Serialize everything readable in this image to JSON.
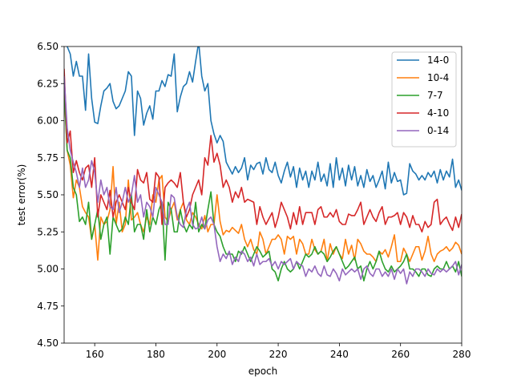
{
  "chart_data": {
    "type": "line",
    "title": "",
    "xlabel": "epoch",
    "ylabel": "test error(%)",
    "xlim": [
      150,
      280
    ],
    "ylim": [
      4.5,
      6.5
    ],
    "xticks": [
      160,
      180,
      200,
      220,
      240,
      260,
      280
    ],
    "yticks": [
      4.5,
      4.75,
      5.0,
      5.25,
      5.5,
      5.75,
      6.0,
      6.25,
      6.5
    ],
    "ytick_labels": [
      "4.50",
      "4.75",
      "5.00",
      "5.25",
      "5.50",
      "5.75",
      "6.00",
      "6.25",
      "6.50"
    ],
    "grid": false,
    "legend_position": "top-right",
    "x_start": 150,
    "x_step": 1,
    "series": [
      {
        "name": "14-0",
        "color": "#1f77b4",
        "values": [
          6.55,
          6.5,
          6.45,
          6.3,
          6.4,
          6.3,
          6.3,
          6.07,
          6.45,
          6.15,
          5.99,
          5.98,
          6.1,
          6.2,
          6.22,
          6.25,
          6.13,
          6.08,
          6.1,
          6.15,
          6.2,
          6.33,
          6.3,
          5.9,
          6.2,
          6.15,
          5.97,
          6.05,
          6.1,
          6.01,
          6.2,
          6.2,
          6.27,
          6.23,
          6.31,
          6.3,
          6.45,
          6.06,
          6.16,
          6.23,
          6.25,
          6.33,
          6.26,
          6.4,
          6.53,
          6.3,
          6.2,
          6.25,
          6.0,
          5.91,
          5.85,
          5.9,
          5.86,
          5.72,
          5.68,
          5.64,
          5.69,
          5.65,
          5.68,
          5.75,
          5.6,
          5.7,
          5.67,
          5.71,
          5.72,
          5.64,
          5.75,
          5.67,
          5.65,
          5.72,
          5.63,
          5.58,
          5.66,
          5.72,
          5.62,
          5.69,
          5.55,
          5.68,
          5.6,
          5.66,
          5.55,
          5.66,
          5.6,
          5.72,
          5.59,
          5.64,
          5.56,
          5.71,
          5.55,
          5.75,
          5.6,
          5.68,
          5.56,
          5.7,
          5.6,
          5.69,
          5.56,
          5.63,
          5.55,
          5.67,
          5.59,
          5.63,
          5.55,
          5.6,
          5.66,
          5.54,
          5.72,
          5.58,
          5.65,
          5.59,
          5.6,
          5.5,
          5.51,
          5.71,
          5.66,
          5.64,
          5.6,
          5.63,
          5.6,
          5.65,
          5.62,
          5.66,
          5.58,
          5.67,
          5.6,
          5.66,
          5.62,
          5.74,
          5.55,
          5.6,
          5.53
        ]
      },
      {
        "name": "10-4",
        "color": "#ff7f0e",
        "values": [
          6.2,
          5.8,
          5.7,
          5.48,
          5.6,
          5.55,
          5.42,
          5.38,
          5.35,
          5.2,
          5.3,
          5.06,
          5.35,
          5.3,
          5.32,
          5.4,
          5.69,
          5.3,
          5.45,
          5.25,
          5.3,
          5.6,
          5.33,
          5.35,
          5.38,
          5.3,
          5.25,
          5.35,
          5.3,
          5.5,
          5.45,
          5.6,
          5.63,
          5.35,
          5.32,
          5.4,
          5.45,
          5.33,
          5.4,
          5.45,
          5.33,
          5.3,
          5.38,
          5.35,
          5.3,
          5.27,
          5.36,
          5.25,
          5.3,
          5.3,
          5.5,
          5.32,
          5.23,
          5.26,
          5.25,
          5.28,
          5.26,
          5.24,
          5.3,
          5.2,
          5.15,
          5.2,
          5.13,
          5.1,
          5.25,
          5.2,
          5.1,
          5.15,
          5.2,
          5.2,
          5.23,
          5.2,
          5.1,
          5.22,
          5.2,
          5.22,
          5.1,
          5.2,
          5.17,
          5.1,
          5.1,
          5.2,
          5.13,
          5.1,
          5.12,
          5.2,
          5.05,
          5.17,
          5.1,
          5.15,
          5.1,
          5.07,
          5.2,
          5.1,
          5.16,
          5.06,
          5.2,
          5.17,
          5.12,
          5.1,
          5.1,
          5.08,
          5.05,
          5.12,
          5.1,
          5.13,
          5.08,
          5.15,
          5.23,
          5.05,
          5.05,
          5.14,
          5.1,
          5.05,
          5.1,
          5.15,
          5.15,
          5.06,
          5.12,
          5.22,
          5.1,
          5.05,
          5.1,
          5.12,
          5.13,
          5.15,
          5.12,
          5.14,
          5.18,
          5.16,
          5.1
        ]
      },
      {
        "name": "7-7",
        "color": "#2ca02c",
        "values": [
          6.2,
          5.8,
          5.75,
          5.55,
          5.5,
          5.32,
          5.35,
          5.3,
          5.45,
          5.2,
          5.3,
          5.4,
          5.2,
          5.3,
          5.35,
          5.1,
          5.35,
          5.3,
          5.25,
          5.27,
          5.35,
          5.3,
          5.5,
          5.25,
          5.3,
          5.3,
          5.2,
          5.4,
          5.25,
          5.35,
          5.3,
          5.4,
          5.45,
          5.06,
          5.45,
          5.4,
          5.25,
          5.25,
          5.4,
          5.3,
          5.25,
          5.3,
          5.27,
          5.45,
          5.25,
          5.3,
          5.27,
          5.4,
          5.52,
          5.3,
          5.25,
          5.22,
          5.15,
          5.1,
          5.1,
          5.1,
          5.05,
          5.12,
          5.1,
          5.15,
          5.1,
          5.05,
          5.1,
          5.15,
          5.12,
          5.08,
          5.1,
          5.12,
          5.0,
          4.98,
          4.92,
          5.0,
          5.05,
          5.0,
          4.98,
          5.0,
          5.05,
          5.0,
          5.05,
          5.1,
          5.08,
          5.1,
          5.15,
          5.1,
          5.12,
          5.1,
          5.05,
          5.08,
          5.12,
          5.15,
          5.1,
          5.05,
          5.0,
          5.02,
          5.05,
          5.08,
          5.0,
          5.02,
          4.92,
          5.0,
          5.05,
          5.0,
          5.05,
          5.12,
          5.05,
          5.0,
          4.98,
          5.02,
          4.98,
          5.0,
          5.02,
          5.05,
          5.1,
          5.0,
          5.0,
          4.98,
          4.95,
          5.0,
          5.0,
          4.96,
          4.95,
          5.0,
          5.02,
          5.0,
          5.0,
          5.05,
          5.0,
          5.02,
          4.98,
          5.05,
          4.95
        ]
      },
      {
        "name": "4-10",
        "color": "#d62728",
        "values": [
          6.35,
          5.85,
          5.93,
          5.65,
          5.73,
          5.65,
          5.6,
          5.68,
          5.7,
          5.55,
          5.75,
          5.35,
          5.5,
          5.45,
          5.4,
          5.53,
          5.35,
          5.45,
          5.5,
          5.45,
          5.4,
          5.55,
          5.45,
          5.4,
          5.67,
          5.6,
          5.58,
          5.65,
          5.47,
          5.45,
          5.65,
          5.62,
          5.3,
          5.55,
          5.58,
          5.6,
          5.58,
          5.55,
          5.65,
          5.45,
          5.35,
          5.4,
          5.5,
          5.55,
          5.6,
          5.5,
          5.75,
          5.7,
          5.9,
          5.72,
          5.78,
          5.7,
          5.55,
          5.6,
          5.55,
          5.45,
          5.52,
          5.48,
          5.55,
          5.45,
          5.47,
          5.46,
          5.45,
          5.3,
          5.42,
          5.35,
          5.3,
          5.34,
          5.38,
          5.28,
          5.35,
          5.45,
          5.4,
          5.35,
          5.27,
          5.38,
          5.3,
          5.42,
          5.3,
          5.38,
          5.38,
          5.38,
          5.3,
          5.4,
          5.42,
          5.35,
          5.35,
          5.38,
          5.35,
          5.4,
          5.32,
          5.3,
          5.3,
          5.37,
          5.36,
          5.36,
          5.4,
          5.45,
          5.3,
          5.35,
          5.4,
          5.35,
          5.32,
          5.38,
          5.42,
          5.3,
          5.35,
          5.35,
          5.36,
          5.38,
          5.3,
          5.38,
          5.35,
          5.28,
          5.36,
          5.3,
          5.3,
          5.25,
          5.32,
          5.28,
          5.3,
          5.45,
          5.47,
          5.3,
          5.33,
          5.35,
          5.3,
          5.26,
          5.35,
          5.28,
          5.37
        ]
      },
      {
        "name": "0-14",
        "color": "#9467bd",
        "values": [
          6.3,
          5.95,
          5.8,
          5.72,
          5.65,
          5.55,
          5.68,
          5.55,
          5.6,
          5.73,
          5.65,
          5.45,
          5.6,
          5.5,
          5.55,
          5.42,
          5.4,
          5.55,
          5.38,
          5.45,
          5.55,
          5.45,
          5.5,
          5.63,
          5.45,
          5.5,
          5.35,
          5.45,
          5.42,
          5.35,
          5.55,
          5.5,
          5.45,
          5.3,
          5.3,
          5.5,
          5.48,
          5.35,
          5.3,
          5.28,
          5.4,
          5.45,
          5.3,
          5.27,
          5.28,
          5.35,
          5.27,
          5.33,
          5.35,
          5.3,
          5.15,
          5.05,
          5.1,
          5.07,
          5.12,
          5.03,
          5.08,
          5.05,
          5.12,
          5.1,
          5.05,
          5.08,
          5.02,
          5.1,
          5.03,
          5.05,
          5.05,
          5.07,
          5.02,
          5.05,
          5.0,
          5.05,
          5.03,
          5.05,
          5.07,
          5.0,
          5.05,
          5.03,
          5.02,
          4.95,
          5.0,
          4.98,
          5.02,
          4.97,
          4.95,
          5.02,
          4.96,
          4.95,
          5.0,
          4.97,
          4.92,
          5.0,
          4.96,
          4.98,
          5.0,
          4.98,
          5.0,
          4.93,
          5.0,
          5.02,
          4.97,
          4.95,
          5.0,
          5.0,
          4.95,
          4.98,
          4.95,
          5.0,
          4.93,
          5.0,
          4.97,
          5.0,
          4.9,
          4.98,
          4.95,
          5.0,
          5.0,
          4.98,
          4.95,
          5.0,
          4.97,
          4.96,
          5.0,
          4.98,
          5.0,
          4.98,
          5.0,
          5.02,
          5.05,
          4.96,
          5.03
        ]
      }
    ]
  }
}
